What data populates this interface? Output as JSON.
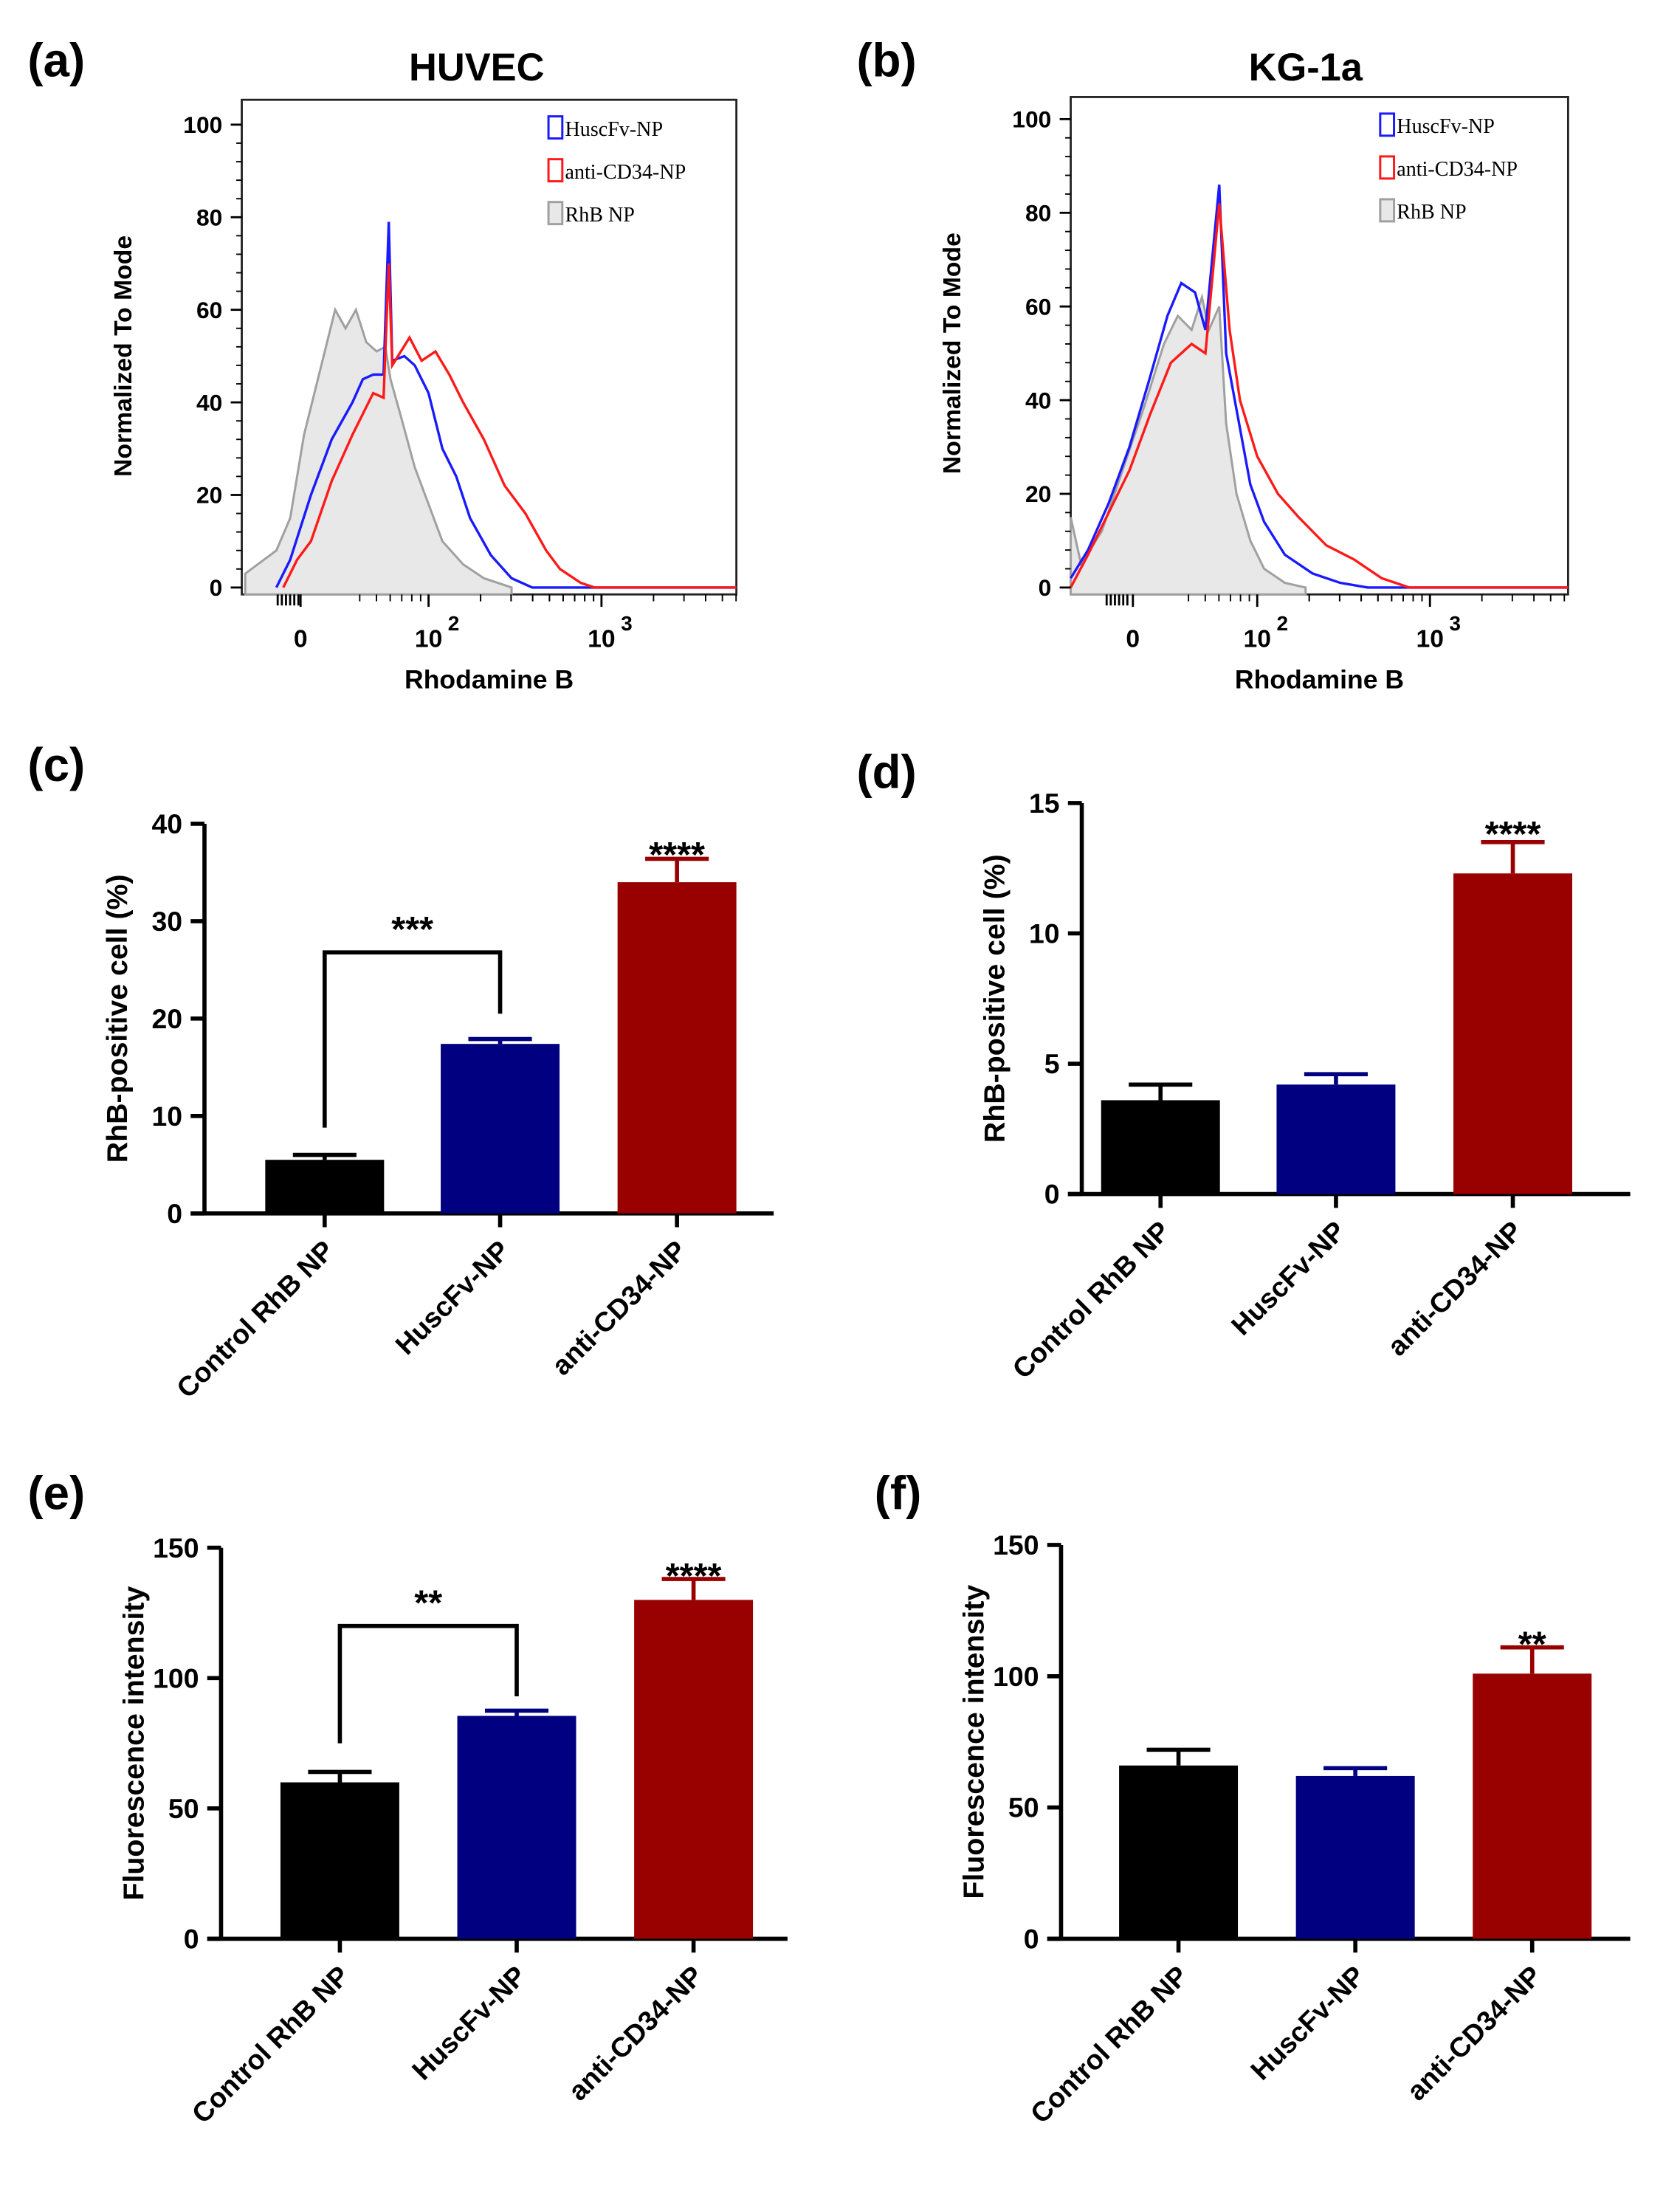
{
  "panel_labels": [
    "(a)",
    "(b)",
    "(c)",
    "(d)",
    "(e)",
    "(f)"
  ],
  "chart_data": [
    {
      "id": "a",
      "type": "line",
      "title": "HUVEC",
      "xlabel": "Rhodamine B",
      "ylabel": "Normalized To Mode",
      "x_units": "log10 decades (biexponential display)",
      "xticks": [
        {
          "v": 1.26,
          "label": "0"
        },
        {
          "v": 2,
          "label": "10",
          "sup": "2"
        },
        {
          "v": 3,
          "label": "10",
          "sup": "3"
        }
      ],
      "xlim": [
        0.92,
        3.78
      ],
      "ylim": [
        0,
        100
      ],
      "yticks": [
        0,
        20,
        40,
        60,
        80,
        100
      ],
      "legend_position": "top-right",
      "series": [
        {
          "name": "HuscFv-NP",
          "color": "#1a1aff",
          "fill": false,
          "x": [
            1.12,
            1.2,
            1.32,
            1.44,
            1.56,
            1.62,
            1.68,
            1.74,
            1.77,
            1.79,
            1.86,
            1.92,
            2.0,
            2.08,
            2.16,
            2.24,
            2.36,
            2.48,
            2.6
          ],
          "y": [
            0,
            6,
            20,
            32,
            40,
            45,
            46,
            46,
            79,
            49,
            50,
            48,
            42,
            30,
            24,
            15,
            7,
            2,
            0
          ]
        },
        {
          "name": "anti-CD34-NP",
          "color": "#ff1a1a",
          "fill": false,
          "x": [
            1.16,
            1.24,
            1.32,
            1.44,
            1.56,
            1.68,
            1.74,
            1.77,
            1.79,
            1.89,
            1.96,
            2.04,
            2.12,
            2.2,
            2.32,
            2.44,
            2.56,
            2.68,
            2.76,
            2.88,
            2.96
          ],
          "y": [
            0,
            6,
            10,
            23,
            33,
            42,
            41,
            70,
            48,
            54,
            49,
            51,
            46,
            40,
            32,
            22,
            16,
            8,
            4,
            1,
            0
          ]
        },
        {
          "name": "RhB NP",
          "color": "#a0a0a0",
          "fill": true,
          "x": [
            0.94,
            1.12,
            1.2,
            1.28,
            1.38,
            1.46,
            1.52,
            1.58,
            1.64,
            1.7,
            1.75,
            1.78,
            1.84,
            1.92,
            2.0,
            2.08,
            2.2,
            2.32,
            2.48
          ],
          "y": [
            3,
            8,
            15,
            33,
            48,
            60,
            56,
            60,
            53,
            51,
            52,
            45,
            37,
            26,
            18,
            10,
            5,
            2,
            0
          ]
        }
      ]
    },
    {
      "id": "b",
      "type": "line",
      "title": "KG-1a",
      "xlabel": "Rhodamine B",
      "ylabel": "Normalized To Mode",
      "x_units": "log10 decades (biexponential display)",
      "xticks": [
        {
          "v": 1.28,
          "label": "0"
        },
        {
          "v": 2,
          "label": "10",
          "sup": "2"
        },
        {
          "v": 3,
          "label": "10",
          "sup": "3"
        }
      ],
      "xlim": [
        0.92,
        3.8
      ],
      "ylim": [
        0,
        100
      ],
      "yticks": [
        0,
        20,
        40,
        60,
        80,
        100
      ],
      "legend_position": "top-right",
      "series": [
        {
          "name": "HuscFv-NP",
          "color": "#1a1aff",
          "fill": false,
          "x": [
            0.92,
            1.02,
            1.14,
            1.26,
            1.38,
            1.48,
            1.56,
            1.64,
            1.7,
            1.78,
            1.82,
            1.88,
            1.96,
            2.04,
            2.16,
            2.32,
            2.48,
            2.64
          ],
          "y": [
            2,
            8,
            18,
            30,
            45,
            58,
            65,
            63,
            55,
            86,
            50,
            38,
            22,
            14,
            7,
            3,
            1,
            0
          ]
        },
        {
          "name": "anti-CD34-NP",
          "color": "#ff1a1a",
          "fill": false,
          "x": [
            0.92,
            1.02,
            1.14,
            1.26,
            1.38,
            1.5,
            1.62,
            1.7,
            1.78,
            1.84,
            1.9,
            2.0,
            2.12,
            2.24,
            2.4,
            2.56,
            2.72,
            2.88
          ],
          "y": [
            0,
            7,
            16,
            25,
            37,
            48,
            52,
            50,
            82,
            55,
            40,
            28,
            20,
            15,
            9,
            6,
            2,
            0
          ]
        },
        {
          "name": "RhB NP",
          "color": "#a0a0a0",
          "fill": true,
          "x": [
            0.92,
            0.98,
            1.1,
            1.22,
            1.34,
            1.46,
            1.54,
            1.62,
            1.68,
            1.72,
            1.78,
            1.82,
            1.88,
            1.96,
            2.04,
            2.16,
            2.28
          ],
          "y": [
            15,
            5,
            12,
            25,
            38,
            52,
            58,
            55,
            62,
            55,
            60,
            35,
            20,
            10,
            4,
            1,
            0
          ]
        }
      ]
    },
    {
      "id": "c",
      "type": "bar",
      "ylabel": "RhB-positive cell (%)",
      "categories": [
        "Control RhB NP",
        "HuscFv-NP",
        "anti-CD34-NP"
      ],
      "values": [
        5.5,
        17.4,
        34.0
      ],
      "errors": [
        0.5,
        0.5,
        2.4
      ],
      "colors": [
        "#000000",
        "#000080",
        "#990000"
      ],
      "ylim": [
        0,
        40
      ],
      "yticks": [
        0,
        10,
        20,
        30,
        40
      ],
      "annotations": [
        {
          "type": "bracket",
          "from": 0,
          "to": 1,
          "left_y": 8.8,
          "right_y": 20.5,
          "top_y": 26.8,
          "label": "***"
        },
        {
          "type": "star",
          "bar": 2,
          "y": 37.6,
          "label": "****"
        }
      ]
    },
    {
      "id": "d",
      "type": "bar",
      "ylabel": "RhB-positive cell (%)",
      "categories": [
        "Control RhB NP",
        "HuscFv-NP",
        "anti-CD34-NP"
      ],
      "values": [
        3.6,
        4.2,
        12.3
      ],
      "errors": [
        0.6,
        0.4,
        1.2
      ],
      "colors": [
        "#000000",
        "#000080",
        "#990000"
      ],
      "ylim": [
        0,
        15
      ],
      "yticks": [
        0,
        5,
        10,
        15
      ],
      "annotations": [
        {
          "type": "star",
          "bar": 2,
          "y": 14.1,
          "label": "****"
        }
      ]
    },
    {
      "id": "e",
      "type": "bar",
      "ylabel": "Fluorescence intensity",
      "categories": [
        "Control RhB NP",
        "HuscFv-NP",
        "anti-CD34-NP"
      ],
      "values": [
        60,
        85.5,
        130
      ],
      "errors": [
        4,
        2,
        8
      ],
      "colors": [
        "#000000",
        "#000080",
        "#990000"
      ],
      "ylim": [
        0,
        150
      ],
      "yticks": [
        0,
        50,
        100,
        150
      ],
      "annotations": [
        {
          "type": "bracket",
          "from": 0,
          "to": 1,
          "left_y": 75,
          "right_y": 93,
          "top_y": 120,
          "label": "**"
        },
        {
          "type": "star",
          "bar": 2,
          "y": 142,
          "label": "****"
        }
      ]
    },
    {
      "id": "f",
      "type": "bar",
      "ylabel": "Fluorescence intensity",
      "categories": [
        "Control RhB NP",
        "HuscFv-NP",
        "anti-CD34-NP"
      ],
      "values": [
        66,
        62,
        101
      ],
      "errors": [
        6,
        3,
        10
      ],
      "colors": [
        "#000000",
        "#000080",
        "#990000"
      ],
      "ylim": [
        0,
        150
      ],
      "yticks": [
        0,
        50,
        100,
        150
      ],
      "annotations": [
        {
          "type": "star",
          "bar": 2,
          "y": 115,
          "label": "**"
        }
      ]
    }
  ]
}
